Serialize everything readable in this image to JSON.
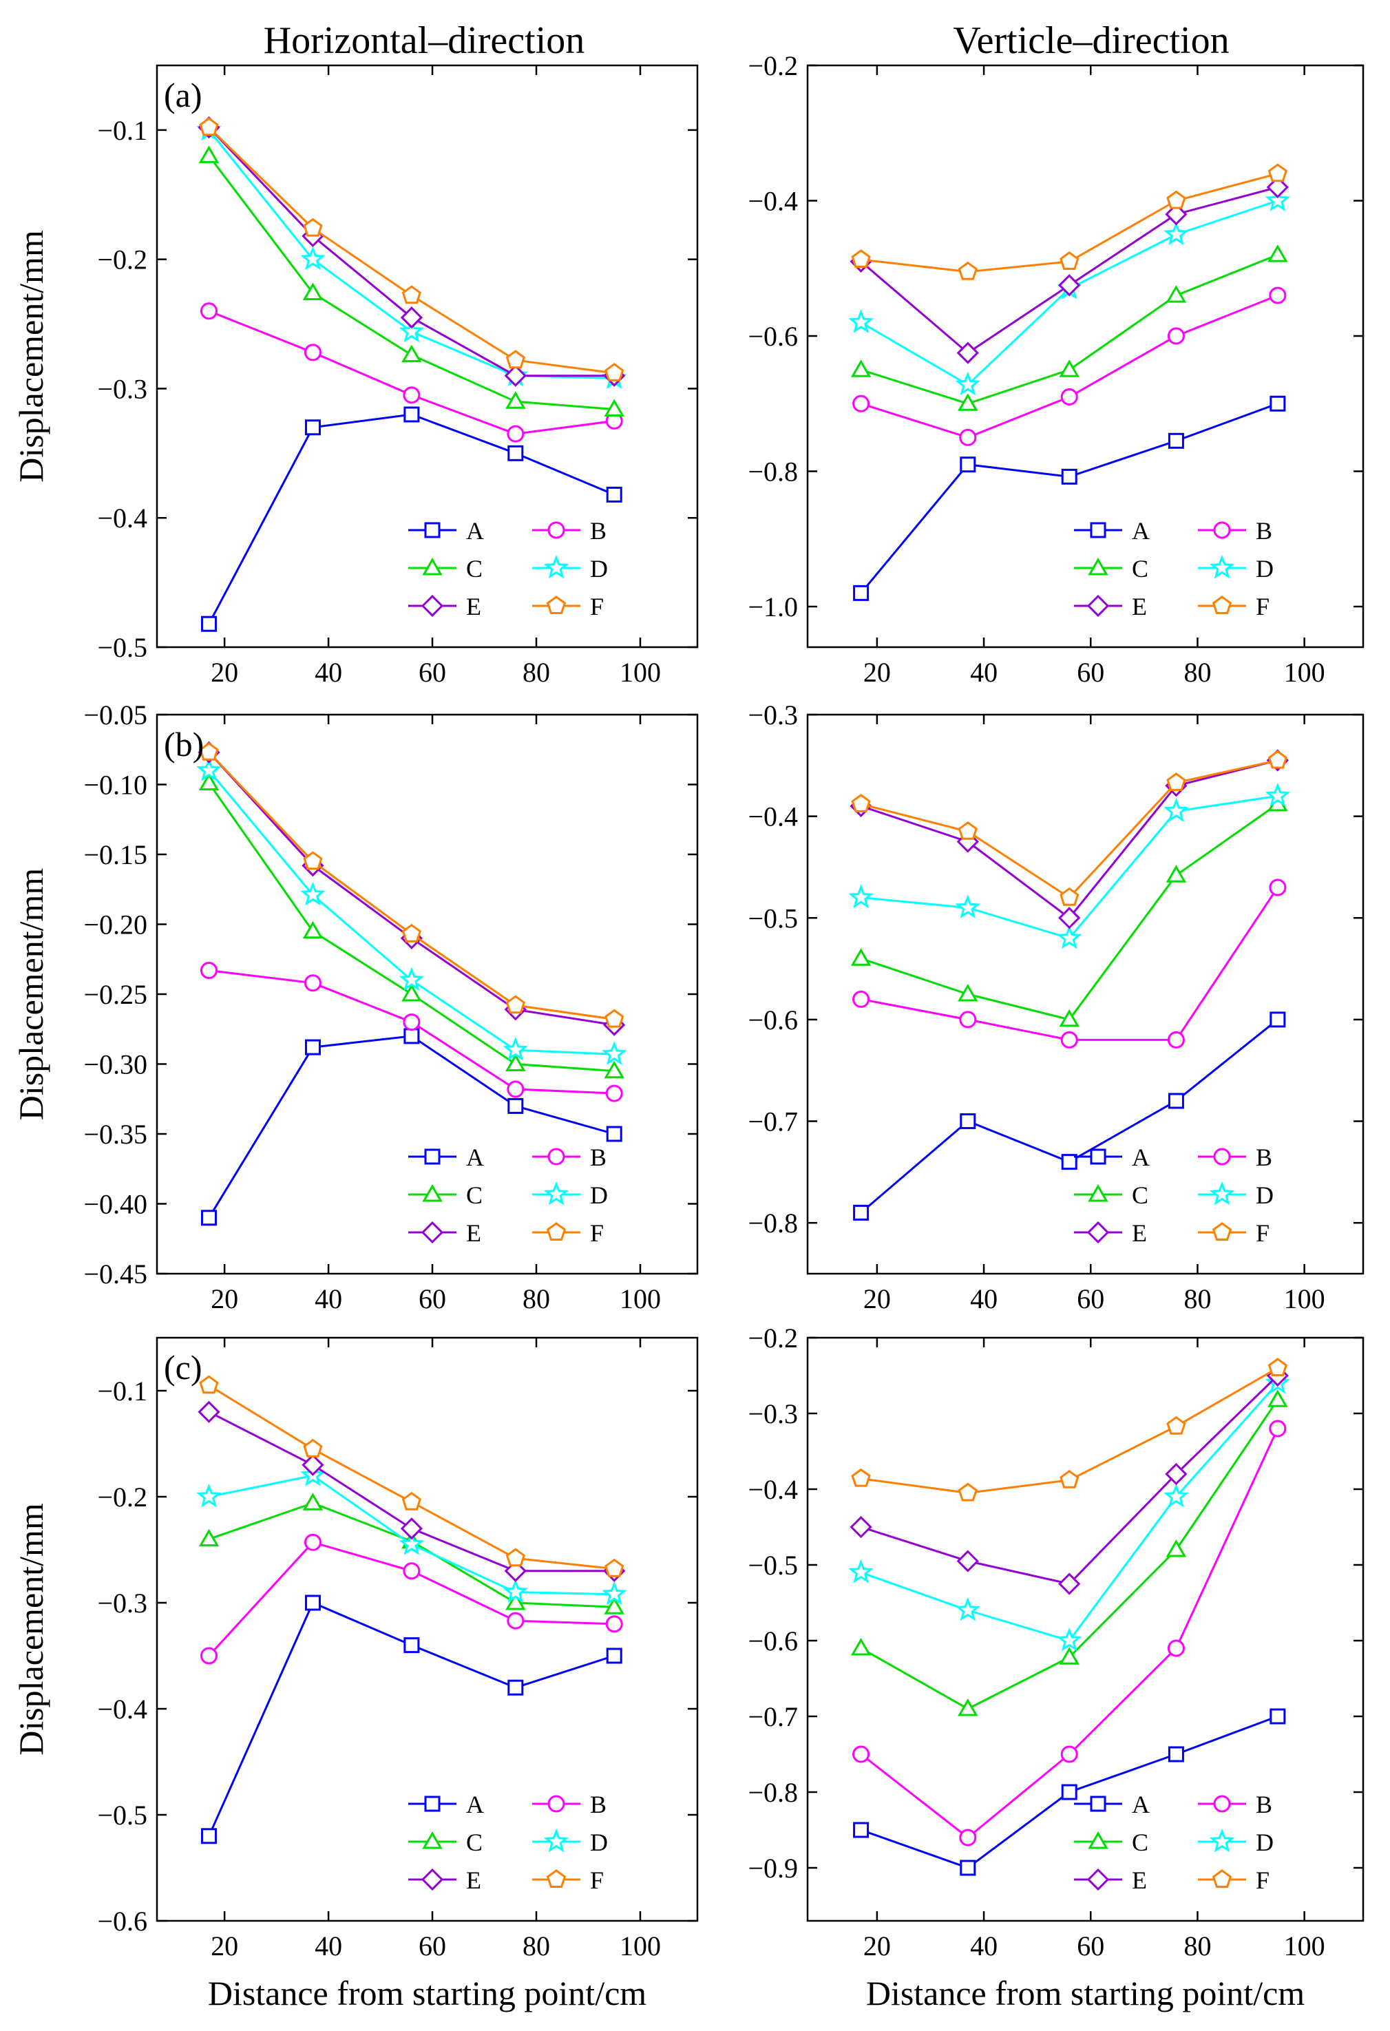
{
  "column_titles": [
    "Horizontal–direction",
    "Verticle–direction"
  ],
  "x_axis_label": "Distance from starting point/cm",
  "y_axis_label": "Displacement/mm",
  "panel_labels": [
    "(a)",
    "(b)",
    "(c)"
  ],
  "colors": {
    "A": "#0000ff",
    "B": "#ff00ff",
    "C": "#00dd00",
    "D": "#00ffff",
    "E": "#9400d3",
    "F": "#ff8000"
  },
  "markers": {
    "A": "square-marker",
    "B": "circle-marker",
    "C": "triangle-marker",
    "D": "star-marker",
    "E": "diamond-marker",
    "F": "pentagon-marker"
  },
  "chart_data": [
    {
      "type": "line",
      "panel": "(a)",
      "title": "Horizontal–direction",
      "xlabel": "",
      "ylabel": "Displacement/mm",
      "x": [
        17,
        37,
        56,
        76,
        95
      ],
      "xlim": [
        7,
        111
      ],
      "ylim": [
        -0.5,
        -0.05
      ],
      "xticks": [
        "20",
        "40",
        "60",
        "80",
        "100"
      ],
      "yticks": [
        "−0.5",
        "−0.4",
        "−0.3",
        "−0.2",
        "−0.1"
      ],
      "ytick_values": [
        -0.5,
        -0.4,
        -0.3,
        -0.2,
        -0.1
      ],
      "legend_position": "bottom-right",
      "series": [
        {
          "name": "A",
          "values": [
            -0.482,
            -0.33,
            -0.32,
            -0.35,
            -0.382
          ]
        },
        {
          "name": "B",
          "values": [
            -0.24,
            -0.272,
            -0.305,
            -0.335,
            -0.325
          ]
        },
        {
          "name": "C",
          "values": [
            -0.12,
            -0.226,
            -0.274,
            -0.31,
            -0.316
          ]
        },
        {
          "name": "D",
          "values": [
            -0.1,
            -0.2,
            -0.256,
            -0.29,
            -0.292
          ]
        },
        {
          "name": "E",
          "values": [
            -0.098,
            -0.182,
            -0.245,
            -0.29,
            -0.29
          ]
        },
        {
          "name": "F",
          "values": [
            -0.098,
            -0.176,
            -0.228,
            -0.278,
            -0.288
          ]
        }
      ]
    },
    {
      "type": "line",
      "panel": "",
      "title": "Verticle–direction",
      "xlabel": "",
      "ylabel": "",
      "x": [
        17,
        37,
        56,
        76,
        95
      ],
      "xlim": [
        7,
        111
      ],
      "ylim": [
        -1.06,
        -0.2
      ],
      "xticks": [
        "20",
        "40",
        "60",
        "80",
        "100"
      ],
      "yticks": [
        "−1.0",
        "−0.8",
        "−0.6",
        "−0.4",
        "−0.2"
      ],
      "ytick_values": [
        -1.0,
        -0.8,
        -0.6,
        -0.4,
        -0.2
      ],
      "legend_position": "bottom-right",
      "series": [
        {
          "name": "A",
          "values": [
            -0.98,
            -0.79,
            -0.808,
            -0.755,
            -0.7
          ]
        },
        {
          "name": "B",
          "values": [
            -0.7,
            -0.75,
            -0.69,
            -0.6,
            -0.54
          ]
        },
        {
          "name": "C",
          "values": [
            -0.65,
            -0.7,
            -0.65,
            -0.54,
            -0.48
          ]
        },
        {
          "name": "D",
          "values": [
            -0.58,
            -0.672,
            -0.53,
            -0.45,
            -0.4
          ]
        },
        {
          "name": "E",
          "values": [
            -0.49,
            -0.625,
            -0.525,
            -0.42,
            -0.38
          ]
        },
        {
          "name": "F",
          "values": [
            -0.487,
            -0.505,
            -0.49,
            -0.4,
            -0.36
          ]
        }
      ]
    },
    {
      "type": "line",
      "panel": "(b)",
      "title": "",
      "xlabel": "",
      "ylabel": "Displacement/mm",
      "x": [
        17,
        37,
        56,
        76,
        95
      ],
      "xlim": [
        7,
        111
      ],
      "ylim": [
        -0.45,
        -0.05
      ],
      "xticks": [
        "20",
        "40",
        "60",
        "80",
        "100"
      ],
      "yticks": [
        "−0.45",
        "−0.40",
        "−0.35",
        "−0.30",
        "−0.25",
        "−0.20",
        "−0.15",
        "−0.10",
        "−0.05"
      ],
      "ytick_values": [
        -0.45,
        -0.4,
        -0.35,
        -0.3,
        -0.25,
        -0.2,
        -0.15,
        -0.1,
        -0.05
      ],
      "legend_position": "bottom-right",
      "series": [
        {
          "name": "A",
          "values": [
            -0.41,
            -0.288,
            -0.28,
            -0.33,
            -0.35
          ]
        },
        {
          "name": "B",
          "values": [
            -0.233,
            -0.242,
            -0.27,
            -0.318,
            -0.321
          ]
        },
        {
          "name": "C",
          "values": [
            -0.099,
            -0.205,
            -0.25,
            -0.3,
            -0.305
          ]
        },
        {
          "name": "D",
          "values": [
            -0.09,
            -0.179,
            -0.24,
            -0.29,
            -0.293
          ]
        },
        {
          "name": "E",
          "values": [
            -0.077,
            -0.158,
            -0.21,
            -0.261,
            -0.272
          ]
        },
        {
          "name": "F",
          "values": [
            -0.077,
            -0.155,
            -0.207,
            -0.258,
            -0.268
          ]
        }
      ]
    },
    {
      "type": "line",
      "panel": "",
      "title": "",
      "xlabel": "",
      "ylabel": "",
      "x": [
        17,
        37,
        56,
        76,
        95
      ],
      "xlim": [
        7,
        111
      ],
      "ylim": [
        -0.85,
        -0.3
      ],
      "xticks": [
        "20",
        "40",
        "60",
        "80",
        "100"
      ],
      "yticks": [
        "−0.8",
        "−0.7",
        "−0.6",
        "−0.5",
        "−0.4",
        "−0.3"
      ],
      "ytick_values": [
        -0.8,
        -0.7,
        -0.6,
        -0.5,
        -0.4,
        -0.3
      ],
      "legend_position": "bottom-right",
      "series": [
        {
          "name": "A",
          "values": [
            -0.79,
            -0.7,
            -0.74,
            -0.68,
            -0.6
          ]
        },
        {
          "name": "B",
          "values": [
            -0.58,
            -0.6,
            -0.62,
            -0.62,
            -0.47
          ]
        },
        {
          "name": "C",
          "values": [
            -0.54,
            -0.575,
            -0.6,
            -0.458,
            -0.388
          ]
        },
        {
          "name": "D",
          "values": [
            -0.48,
            -0.49,
            -0.52,
            -0.395,
            -0.38
          ]
        },
        {
          "name": "E",
          "values": [
            -0.39,
            -0.425,
            -0.5,
            -0.37,
            -0.345
          ]
        },
        {
          "name": "F",
          "values": [
            -0.388,
            -0.415,
            -0.48,
            -0.367,
            -0.345
          ]
        }
      ]
    },
    {
      "type": "line",
      "panel": "(c)",
      "title": "",
      "xlabel": "Distance from starting point/cm",
      "ylabel": "Displacement/mm",
      "x": [
        17,
        37,
        56,
        76,
        95
      ],
      "xlim": [
        7,
        111
      ],
      "ylim": [
        -0.6,
        -0.05
      ],
      "xticks": [
        "20",
        "40",
        "60",
        "80",
        "100"
      ],
      "yticks": [
        "−0.6",
        "−0.5",
        "−0.4",
        "−0.3",
        "−0.2",
        "−0.1"
      ],
      "ytick_values": [
        -0.6,
        -0.5,
        -0.4,
        -0.3,
        -0.2,
        -0.1
      ],
      "legend_position": "bottom-right",
      "series": [
        {
          "name": "A",
          "values": [
            -0.52,
            -0.3,
            -0.34,
            -0.38,
            -0.35
          ]
        },
        {
          "name": "B",
          "values": [
            -0.35,
            -0.243,
            -0.27,
            -0.317,
            -0.32
          ]
        },
        {
          "name": "C",
          "values": [
            -0.24,
            -0.206,
            -0.242,
            -0.3,
            -0.304
          ]
        },
        {
          "name": "D",
          "values": [
            -0.2,
            -0.18,
            -0.245,
            -0.29,
            -0.292
          ]
        },
        {
          "name": "E",
          "values": [
            -0.12,
            -0.17,
            -0.23,
            -0.27,
            -0.27
          ]
        },
        {
          "name": "F",
          "values": [
            -0.095,
            -0.155,
            -0.205,
            -0.258,
            -0.268
          ]
        }
      ]
    },
    {
      "type": "line",
      "panel": "",
      "title": "",
      "xlabel": "Distance from starting point/cm",
      "ylabel": "",
      "x": [
        17,
        37,
        56,
        76,
        95
      ],
      "xlim": [
        7,
        111
      ],
      "ylim": [
        -0.97,
        -0.2
      ],
      "xticks": [
        "20",
        "40",
        "60",
        "80",
        "100"
      ],
      "yticks": [
        "−0.9",
        "−0.8",
        "−0.7",
        "−0.6",
        "−0.5",
        "−0.4",
        "−0.3",
        "−0.2"
      ],
      "ytick_values": [
        -0.9,
        -0.8,
        -0.7,
        -0.6,
        -0.5,
        -0.4,
        -0.3,
        -0.2
      ],
      "legend_position": "bottom-right",
      "series": [
        {
          "name": "A",
          "values": [
            -0.85,
            -0.9,
            -0.8,
            -0.75,
            -0.7
          ]
        },
        {
          "name": "B",
          "values": [
            -0.75,
            -0.86,
            -0.75,
            -0.61,
            -0.32
          ]
        },
        {
          "name": "C",
          "values": [
            -0.61,
            -0.69,
            -0.622,
            -0.48,
            -0.282
          ]
        },
        {
          "name": "D",
          "values": [
            -0.51,
            -0.56,
            -0.6,
            -0.41,
            -0.26
          ]
        },
        {
          "name": "E",
          "values": [
            -0.45,
            -0.495,
            -0.525,
            -0.38,
            -0.25
          ]
        },
        {
          "name": "F",
          "values": [
            -0.386,
            -0.405,
            -0.388,
            -0.317,
            -0.24
          ]
        }
      ]
    }
  ]
}
